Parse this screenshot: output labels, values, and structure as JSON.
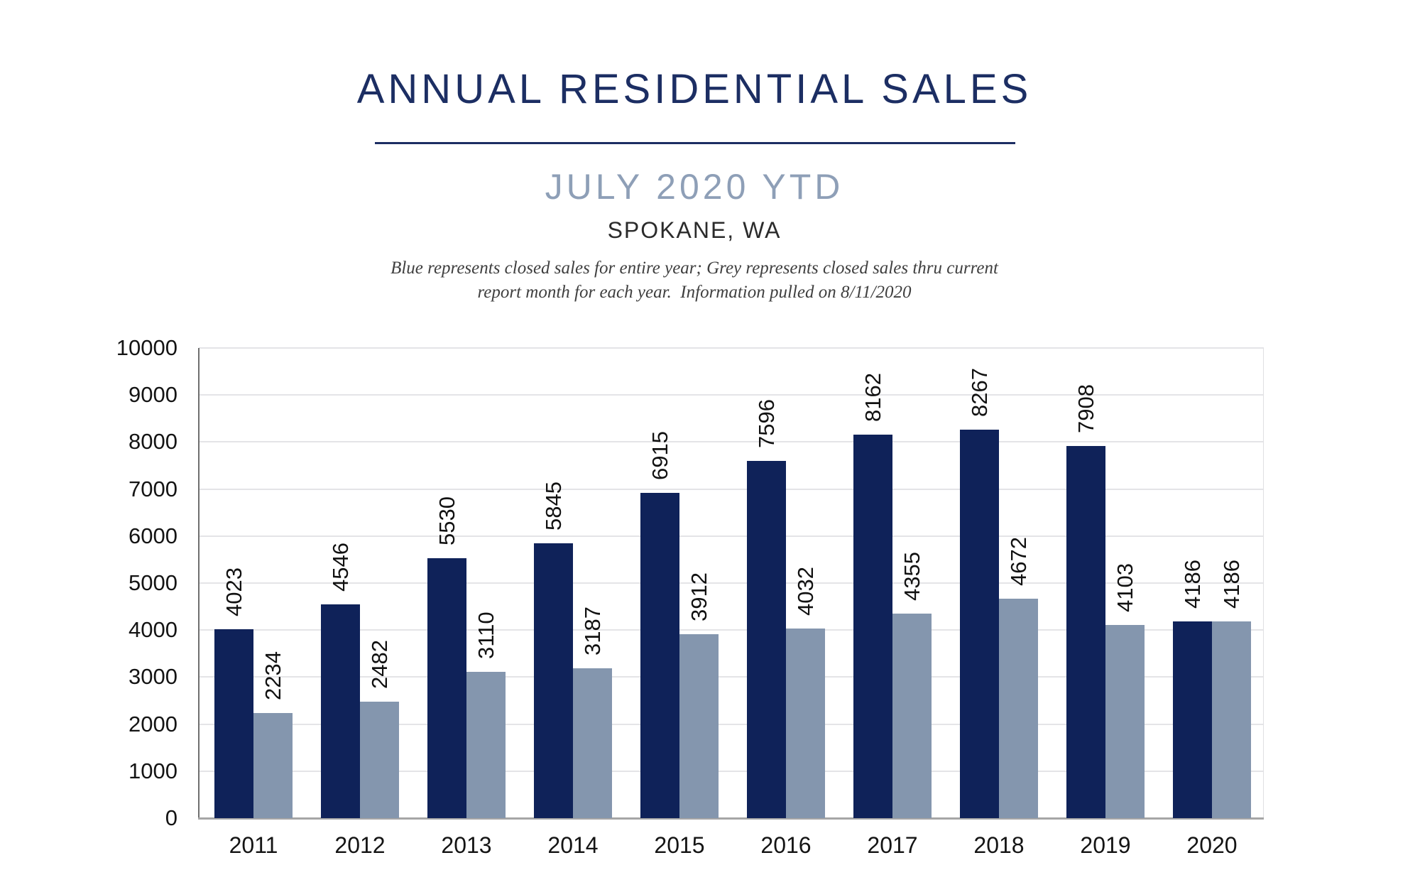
{
  "header": {
    "title": "ANNUAL RESIDENTIAL SALES",
    "subtitle": "JULY 2020 YTD",
    "location": "SPOKANE, WA",
    "note_line1": "Blue represents closed sales for entire year; Grey represents closed sales thru current",
    "note_line2": "report month for each year.  Information pulled on 8/11/2020"
  },
  "colors": {
    "title_navy": "#1c2e63",
    "subtitle_grey_blue": "#8e9fb7",
    "bar_blue": "#0f2259",
    "bar_grey": "#8496ae",
    "gridline": "#e4e4e7",
    "x_axis_line": "#a6a6a6",
    "y_axis_line": "#6f6f6f"
  },
  "chart_data": {
    "type": "bar",
    "title": "ANNUAL RESIDENTIAL SALES — JULY 2020 YTD — SPOKANE, WA",
    "categories": [
      "2011",
      "2012",
      "2013",
      "2014",
      "2015",
      "2016",
      "2017",
      "2018",
      "2019",
      "2020"
    ],
    "series": [
      {
        "name": "Closed sales for entire year (Blue)",
        "color": "#0f2259",
        "values": [
          4023,
          4546,
          5530,
          5845,
          6915,
          7596,
          8162,
          8267,
          7908,
          4186
        ]
      },
      {
        "name": "Closed sales thru current report month (Grey)",
        "color": "#8496ae",
        "values": [
          2234,
          2482,
          3110,
          3187,
          3912,
          4032,
          4355,
          4672,
          4103,
          4186
        ]
      }
    ],
    "xlabel": "",
    "ylabel": "",
    "ylim": [
      0,
      10000
    ],
    "ytick_step": 1000,
    "grid": "horizontal",
    "legend": "none",
    "bar_labels": "rotated -90, above each bar"
  }
}
